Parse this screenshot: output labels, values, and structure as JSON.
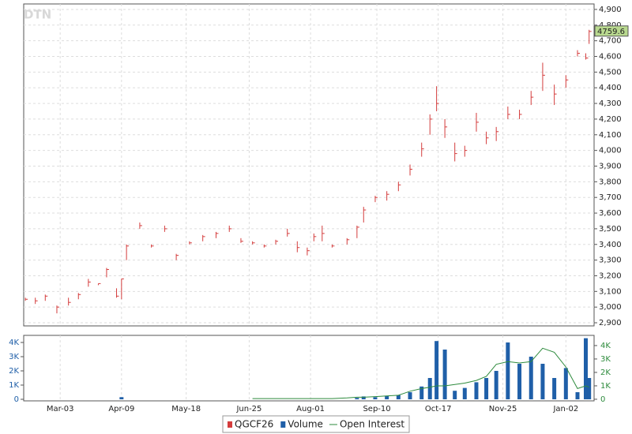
{
  "chart_data": [
    {
      "type": "ohlc",
      "watermark": "DTN",
      "x": [
        -21,
        -15,
        -9,
        -2,
        5,
        11,
        17,
        23,
        28,
        34,
        37,
        40,
        48,
        55,
        63,
        70,
        78,
        86,
        94,
        102,
        109,
        116,
        123,
        130,
        137,
        143,
        149,
        153,
        158,
        164,
        173,
        179,
        183,
        190,
        197,
        204,
        211,
        218,
        223,
        227,
        232,
        238,
        244,
        251,
        257,
        263,
        270,
        277,
        284,
        291,
        298,
        305,
        312,
        317,
        319
      ],
      "series": [
        {
          "name": "QGCF26",
          "color": "#d43c3c",
          "high": [
            3060,
            3060,
            3080,
            3010,
            3060,
            3090,
            3180,
            3150,
            3250,
            3120,
            3180,
            3400,
            3540,
            3400,
            3520,
            3340,
            3420,
            3460,
            3480,
            3520,
            3440,
            3420,
            3400,
            3430,
            3500,
            3420,
            3380,
            3470,
            3520,
            3400,
            3440,
            3520,
            3640,
            3710,
            3740,
            3800,
            3910,
            4050,
            4230,
            4410,
            4200,
            4050,
            4030,
            4240,
            4120,
            4150,
            4280,
            4260,
            4380,
            4560,
            4420,
            4480,
            4640,
            4620,
            4770
          ],
          "low": [
            3040,
            3020,
            3040,
            2960,
            3010,
            3050,
            3130,
            3140,
            3190,
            3060,
            3050,
            3300,
            3500,
            3380,
            3480,
            3300,
            3400,
            3420,
            3440,
            3480,
            3410,
            3400,
            3380,
            3400,
            3450,
            3350,
            3330,
            3420,
            3420,
            3380,
            3400,
            3440,
            3540,
            3670,
            3680,
            3740,
            3840,
            3960,
            4100,
            4250,
            4080,
            3930,
            3960,
            4120,
            4040,
            4060,
            4200,
            4200,
            4290,
            4380,
            4290,
            4400,
            4600,
            4580,
            4680
          ],
          "close": [
            3050,
            3040,
            3070,
            3000,
            3030,
            3080,
            3160,
            3150,
            3240,
            3070,
            3180,
            3390,
            3520,
            3390,
            3500,
            3330,
            3410,
            3450,
            3470,
            3500,
            3420,
            3410,
            3390,
            3420,
            3470,
            3380,
            3360,
            3450,
            3470,
            3390,
            3430,
            3510,
            3620,
            3700,
            3720,
            3780,
            3880,
            4010,
            4200,
            4300,
            4150,
            3980,
            4000,
            4180,
            4080,
            4120,
            4230,
            4230,
            4340,
            4480,
            4360,
            4450,
            4620,
            4590,
            4759.6
          ]
        }
      ],
      "xlim": [
        -22,
        322
      ],
      "xticks": [
        0,
        37,
        76,
        114,
        151,
        191,
        228,
        267,
        305
      ],
      "ylim": [
        2880,
        4935
      ],
      "yticks": [
        {
          "value": 2900,
          "label": "2,900"
        },
        {
          "value": 3000,
          "label": "3,000"
        },
        {
          "value": 3100,
          "label": "3,100"
        },
        {
          "value": 3200,
          "label": "3,200"
        },
        {
          "value": 3300,
          "label": "3,300"
        },
        {
          "value": 3400,
          "label": "3,400"
        },
        {
          "value": 3500,
          "label": "3,500"
        },
        {
          "value": 3600,
          "label": "3,600"
        },
        {
          "value": 3700,
          "label": "3,700"
        },
        {
          "value": 3800,
          "label": "3,800"
        },
        {
          "value": 3900,
          "label": "3,900"
        },
        {
          "value": 4000,
          "label": "4,000"
        },
        {
          "value": 4100,
          "label": "4,100"
        },
        {
          "value": 4200,
          "label": "4,200"
        },
        {
          "value": 4300,
          "label": "4,300"
        },
        {
          "value": 4400,
          "label": "4,400"
        },
        {
          "value": 4500,
          "label": "4,500"
        },
        {
          "value": 4600,
          "label": "4,600"
        },
        {
          "value": 4700,
          "label": "4,700"
        },
        {
          "value": 4800,
          "label": "4,800"
        },
        {
          "value": 4900,
          "label": "4,900"
        }
      ],
      "grid": true
    },
    {
      "type": "bar",
      "x": [
        -21,
        -15,
        -9,
        -2,
        5,
        11,
        17,
        23,
        28,
        34,
        37,
        40,
        48,
        55,
        63,
        70,
        78,
        86,
        94,
        102,
        109,
        116,
        123,
        130,
        137,
        143,
        149,
        153,
        158,
        164,
        173,
        179,
        183,
        190,
        197,
        204,
        211,
        218,
        223,
        227,
        232,
        238,
        244,
        251,
        257,
        263,
        270,
        277,
        284,
        291,
        298,
        305,
        312,
        317,
        319
      ],
      "series": [
        {
          "name": "Volume",
          "color": "#1f5fa8",
          "values": [
            0,
            0,
            0,
            0,
            0,
            0,
            0,
            0,
            0,
            0,
            150,
            0,
            0,
            0,
            0,
            0,
            0,
            0,
            0,
            0,
            0,
            0,
            0,
            0,
            0,
            0,
            0,
            0,
            0,
            0,
            0,
            100,
            200,
            150,
            250,
            300,
            500,
            900,
            1500,
            4100,
            3500,
            600,
            800,
            1200,
            1500,
            2000,
            4000,
            2500,
            3000,
            2500,
            1500,
            2200,
            500,
            4300,
            1500
          ]
        },
        {
          "name": "Open Interest",
          "color": "#2e8b3d",
          "axis": "y2",
          "values": [
            null,
            null,
            null,
            null,
            null,
            null,
            null,
            null,
            null,
            null,
            null,
            null,
            null,
            null,
            null,
            null,
            null,
            null,
            null,
            null,
            null,
            50,
            50,
            50,
            50,
            50,
            50,
            50,
            50,
            50,
            100,
            150,
            150,
            200,
            250,
            300,
            600,
            800,
            900,
            1000,
            1000,
            1100,
            1200,
            1400,
            1700,
            2600,
            2800,
            2700,
            2800,
            3800,
            3500,
            2400,
            800,
            1000,
            900
          ]
        }
      ],
      "xlim": [
        -22,
        322
      ],
      "xticks": [
        {
          "value": 0,
          "label": "Mar-03"
        },
        {
          "value": 37,
          "label": "Apr-09"
        },
        {
          "value": 76,
          "label": "May-18"
        },
        {
          "value": 114,
          "label": "Jun-25"
        },
        {
          "value": 151,
          "label": "Aug-01"
        },
        {
          "value": 191,
          "label": "Sep-10"
        },
        {
          "value": 228,
          "label": "Oct-17"
        },
        {
          "value": 267,
          "label": "Nov-25"
        },
        {
          "value": 305,
          "label": "Jan-02"
        }
      ],
      "ylim": [
        -110,
        4500
      ],
      "yticks": [
        0,
        {
          "value": 1000,
          "label": "1K"
        },
        {
          "value": 2000,
          "label": "2K"
        },
        {
          "value": 3000,
          "label": "3K"
        },
        {
          "value": 4000,
          "label": "4K"
        }
      ],
      "y2lim": [
        -120,
        4760
      ],
      "y2ticks": [
        0,
        {
          "value": 1000,
          "label": "1K"
        },
        {
          "value": 2000,
          "label": "2K"
        },
        {
          "value": 3000,
          "label": "3K"
        },
        {
          "value": 4000,
          "label": "4K"
        }
      ],
      "grid": true
    }
  ]
}
